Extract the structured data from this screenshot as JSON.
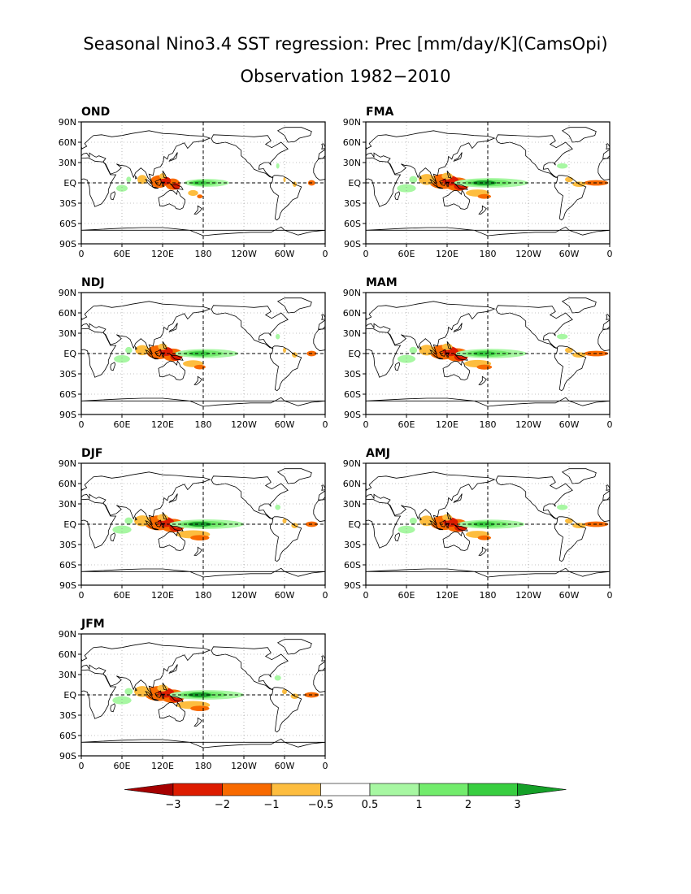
{
  "title": {
    "line1": "Seasonal Nino3.4 SST regression: Prec [mm/day/K](CamsOpi)",
    "line2": "Observation 1982−2010"
  },
  "lat_labels": [
    "90N",
    "60N",
    "30N",
    "EQ",
    "30S",
    "60S",
    "90S"
  ],
  "lon_labels": [
    "0",
    "60E",
    "120E",
    "180",
    "120W",
    "60W",
    "0"
  ],
  "panels": [
    {
      "name": "OND",
      "strength": 0.6,
      "southern_band": 0.3,
      "warm_spots": 0.3
    },
    {
      "name": "FMA",
      "strength": 1.0,
      "southern_band": 0.7,
      "warm_spots": 1.0
    },
    {
      "name": "NDJ",
      "strength": 0.85,
      "southern_band": 0.6,
      "warm_spots": 0.4
    },
    {
      "name": "MAM",
      "strength": 0.95,
      "southern_band": 0.8,
      "warm_spots": 1.0
    },
    {
      "name": "DJF",
      "strength": 1.0,
      "southern_band": 1.0,
      "warm_spots": 0.5
    },
    {
      "name": "AMJ",
      "strength": 0.9,
      "southern_band": 0.7,
      "warm_spots": 1.0
    },
    {
      "name": "JFM",
      "strength": 1.0,
      "southern_band": 1.0,
      "warm_spots": 0.6
    }
  ],
  "colorbar": {
    "labels": [
      "−3",
      "−2",
      "−1",
      "−0.5",
      "0.5",
      "1",
      "2",
      "3"
    ],
    "colors": [
      "#a50000",
      "#dd1c00",
      "#f86a00",
      "#fdbd3f",
      "#ffffff",
      "#a7f7a2",
      "#72ec6c",
      "#38ce40",
      "#15a028"
    ]
  },
  "colors": {
    "land_outline": "#000000",
    "dashed_axis": "#000000"
  }
}
